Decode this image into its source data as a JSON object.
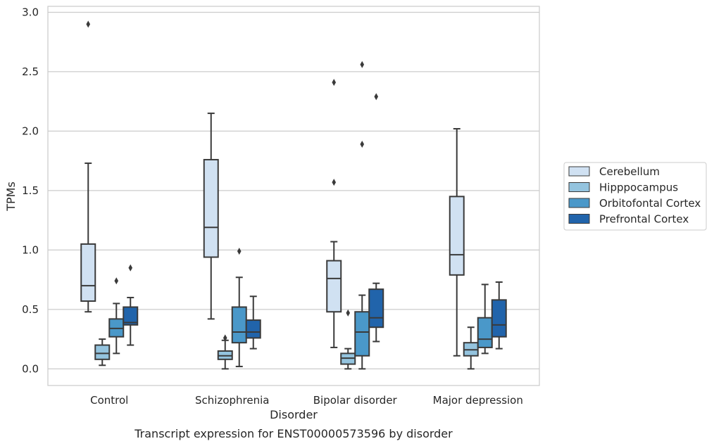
{
  "chart_data": {
    "type": "box",
    "caption": "Transcript expression for ENST00000573596 by disorder",
    "xlabel": "Disorder",
    "ylabel": "TPMs",
    "ylim": [
      -0.14,
      3.05
    ],
    "yticks": [
      "0.0",
      "0.5",
      "1.0",
      "1.5",
      "2.0",
      "2.5",
      "3.0"
    ],
    "grid": true,
    "legend_position": "right",
    "categories": [
      "Control",
      "Schizophrenia",
      "Bipolar disorder",
      "Major depression"
    ],
    "series": [
      {
        "name": "Cerebellum",
        "color": "#d0e1f2",
        "boxes": [
          {
            "whislo": 0.48,
            "q1": 0.57,
            "med": 0.7,
            "q3": 1.05,
            "whishi": 1.73,
            "fliers": [
              2.9
            ]
          },
          {
            "whislo": 0.42,
            "q1": 0.94,
            "med": 1.19,
            "q3": 1.76,
            "whishi": 2.15,
            "fliers": []
          },
          {
            "whislo": 0.18,
            "q1": 0.48,
            "med": 0.76,
            "q3": 0.91,
            "whishi": 1.07,
            "fliers": [
              1.57,
              2.41
            ]
          },
          {
            "whislo": 0.11,
            "q1": 0.79,
            "med": 0.96,
            "q3": 1.45,
            "whishi": 2.02,
            "fliers": []
          }
        ]
      },
      {
        "name": "Hipppocampus",
        "color": "#94c4df",
        "boxes": [
          {
            "whislo": 0.03,
            "q1": 0.08,
            "med": 0.13,
            "q3": 0.2,
            "whishi": 0.25,
            "fliers": []
          },
          {
            "whislo": 0.0,
            "q1": 0.08,
            "med": 0.11,
            "q3": 0.15,
            "whishi": 0.24,
            "fliers": [
              0.26
            ]
          },
          {
            "whislo": 0.0,
            "q1": 0.04,
            "med": 0.09,
            "q3": 0.13,
            "whishi": 0.17,
            "fliers": [
              0.47
            ]
          },
          {
            "whislo": 0.0,
            "q1": 0.11,
            "med": 0.16,
            "q3": 0.22,
            "whishi": 0.35,
            "fliers": []
          }
        ]
      },
      {
        "name": "Orbitofontal Cortex",
        "color": "#4a98c9",
        "boxes": [
          {
            "whislo": 0.13,
            "q1": 0.27,
            "med": 0.34,
            "q3": 0.42,
            "whishi": 0.55,
            "fliers": [
              0.74
            ]
          },
          {
            "whislo": 0.02,
            "q1": 0.22,
            "med": 0.31,
            "q3": 0.52,
            "whishi": 0.77,
            "fliers": [
              0.99
            ]
          },
          {
            "whislo": 0.0,
            "q1": 0.11,
            "med": 0.31,
            "q3": 0.48,
            "whishi": 0.62,
            "fliers": [
              1.89,
              2.56
            ]
          },
          {
            "whislo": 0.13,
            "q1": 0.18,
            "med": 0.25,
            "q3": 0.43,
            "whishi": 0.71,
            "fliers": []
          }
        ]
      },
      {
        "name": "Prefrontal Cortex",
        "color": "#2164ab",
        "boxes": [
          {
            "whislo": 0.2,
            "q1": 0.37,
            "med": 0.39,
            "q3": 0.52,
            "whishi": 0.6,
            "fliers": [
              0.85
            ]
          },
          {
            "whislo": 0.17,
            "q1": 0.26,
            "med": 0.31,
            "q3": 0.41,
            "whishi": 0.61,
            "fliers": []
          },
          {
            "whislo": 0.23,
            "q1": 0.35,
            "med": 0.43,
            "q3": 0.67,
            "whishi": 0.72,
            "fliers": [
              2.29
            ]
          },
          {
            "whislo": 0.17,
            "q1": 0.27,
            "med": 0.37,
            "q3": 0.58,
            "whishi": 0.73,
            "fliers": []
          }
        ]
      }
    ]
  }
}
